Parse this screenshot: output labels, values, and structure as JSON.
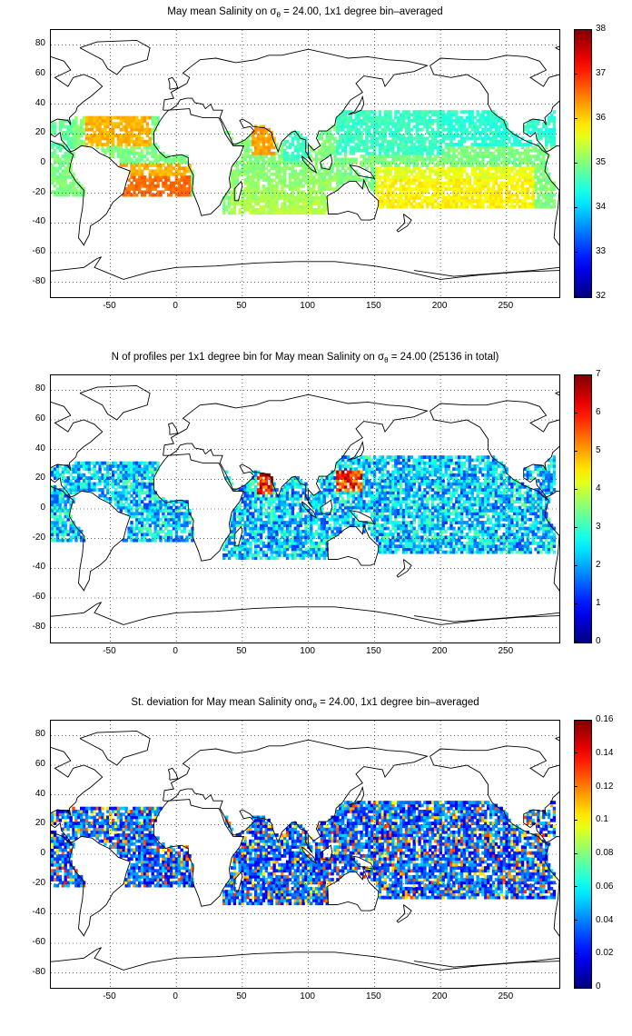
{
  "axes": {
    "x_ticks": [
      "-50",
      "0",
      "50",
      "100",
      "150",
      "200",
      "250"
    ],
    "y_ticks": [
      "80",
      "60",
      "40",
      "20",
      "0",
      "-20",
      "-40",
      "-60",
      "-80"
    ],
    "xlim": [
      -95,
      290
    ],
    "ylim": [
      -90,
      90
    ]
  },
  "panels": [
    {
      "title_pre": "May mean Salinity on ",
      "title_sigma": "σ",
      "title_sub": "θ",
      "title_post": " = 24.00, 1x1 degree bin–averaged",
      "colorbar": {
        "min": 32,
        "max": 38,
        "ticks": [
          "38",
          "37",
          "36",
          "35",
          "34",
          "33",
          "32"
        ]
      },
      "chart_data": {
        "type": "heatmap",
        "variable": "salinity",
        "units": "",
        "ylim": [
          32,
          38
        ]
      }
    },
    {
      "title_pre": "N of profiles per 1x1 degree bin for May mean Salinity on ",
      "title_sigma": "σ",
      "title_sub": "θ",
      "title_post": " = 24.00 (25136 in total)",
      "colorbar": {
        "min": 0,
        "max": 7,
        "ticks": [
          "7",
          "6",
          "5",
          "4",
          "3",
          "2",
          "1",
          "0"
        ]
      },
      "chart_data": {
        "type": "heatmap",
        "variable": "profile count",
        "total": 25136,
        "ylim": [
          0,
          7
        ]
      }
    },
    {
      "title_pre": "St. deviation for May mean Salinity on",
      "title_sigma": "σ",
      "title_sub": "θ",
      "title_post": " = 24.00, 1x1 degree bin–averaged",
      "colorbar": {
        "min": 0,
        "max": 0.16,
        "ticks": [
          "0.16",
          "0.14",
          "0.12",
          "0.1",
          "0.08",
          "0.06",
          "0.04",
          "0.02",
          "0"
        ]
      },
      "chart_data": {
        "type": "heatmap",
        "variable": "salinity standard deviation",
        "ylim": [
          0,
          0.16
        ]
      }
    }
  ],
  "colors": {
    "grid": "#000000",
    "coast": "#000000",
    "colormap": "jet"
  }
}
